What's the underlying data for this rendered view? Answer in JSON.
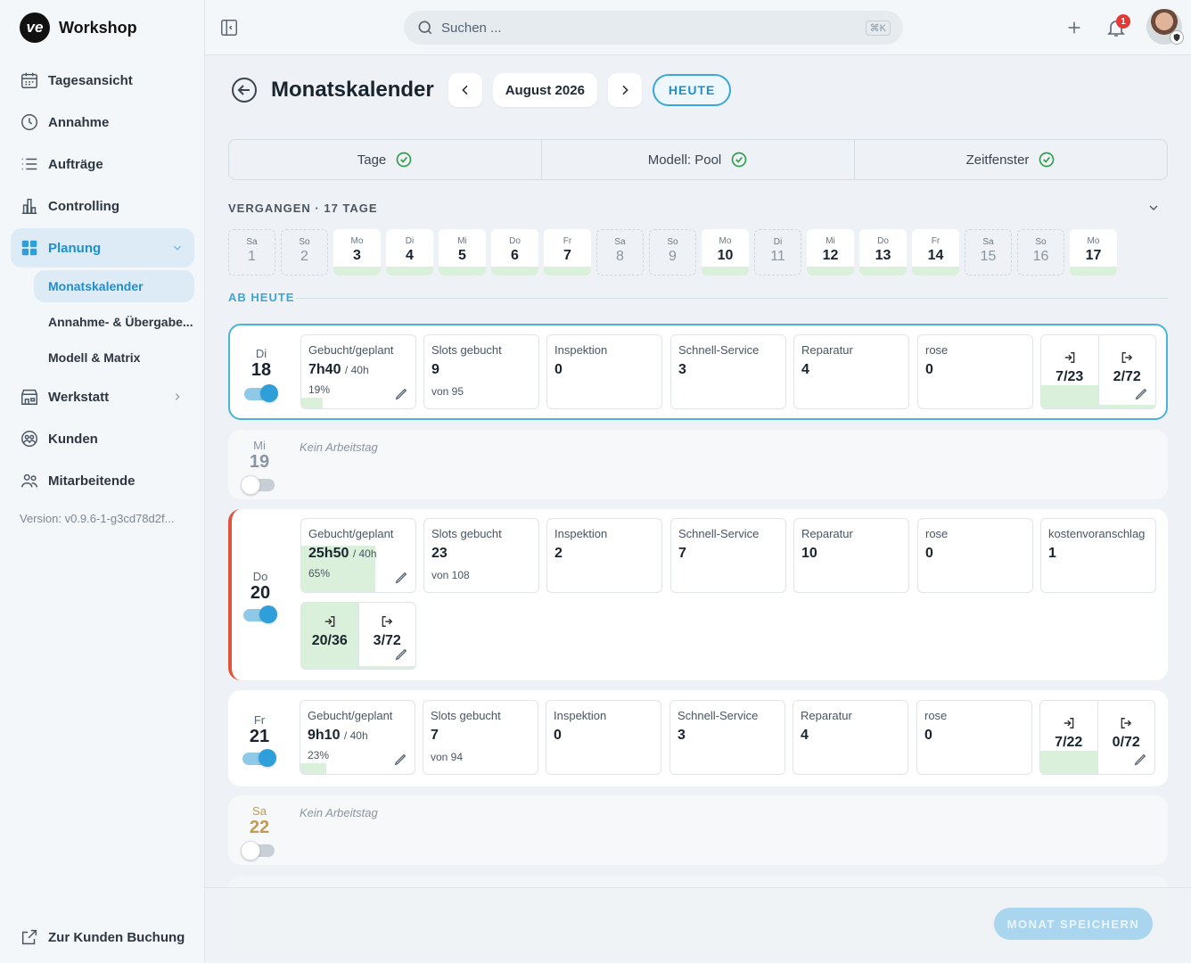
{
  "app": {
    "name": "Workshop",
    "logo_text": "ve",
    "version": "Version: v0.9.6-1-g3cd78d2f..."
  },
  "sidebar": {
    "items": [
      {
        "label": "Tagesansicht",
        "icon": "calendar-icon"
      },
      {
        "label": "Annahme",
        "icon": "clock-icon"
      },
      {
        "label": "Aufträge",
        "icon": "list-icon"
      },
      {
        "label": "Controlling",
        "icon": "chart-icon"
      },
      {
        "label": "Planung",
        "icon": "grid-icon",
        "active": true
      },
      {
        "label": "Werkstatt",
        "icon": "store-icon"
      },
      {
        "label": "Kunden",
        "icon": "users-icon"
      },
      {
        "label": "Mitarbeitende",
        "icon": "team-icon"
      }
    ],
    "subitems": [
      "Monatskalender",
      "Annahme- & Übergabe...",
      "Modell & Matrix"
    ],
    "bottom_link": "Zur Kunden Buchung"
  },
  "topbar": {
    "search_placeholder": "Suchen ...",
    "shortcut": "⌘K",
    "notification_count": "1"
  },
  "header": {
    "title": "Monatskalender",
    "month": "August 2026",
    "today_label": "HEUTE"
  },
  "tabs": [
    "Tage",
    "Modell: Pool",
    "Zeitfenster"
  ],
  "past_label": "VERGANGEN · 17 TAGE",
  "future_label": "AB HEUTE",
  "past_days": [
    {
      "wd": "Sa",
      "d": "1",
      "work": false
    },
    {
      "wd": "So",
      "d": "2",
      "work": false
    },
    {
      "wd": "Mo",
      "d": "3",
      "work": true
    },
    {
      "wd": "Di",
      "d": "4",
      "work": true
    },
    {
      "wd": "Mi",
      "d": "5",
      "work": true
    },
    {
      "wd": "Do",
      "d": "6",
      "work": true
    },
    {
      "wd": "Fr",
      "d": "7",
      "work": true
    },
    {
      "wd": "Sa",
      "d": "8",
      "work": false
    },
    {
      "wd": "So",
      "d": "9",
      "work": false
    },
    {
      "wd": "Mo",
      "d": "10",
      "work": true
    },
    {
      "wd": "Di",
      "d": "11",
      "work": false
    },
    {
      "wd": "Mi",
      "d": "12",
      "work": true
    },
    {
      "wd": "Do",
      "d": "13",
      "work": true
    },
    {
      "wd": "Fr",
      "d": "14",
      "work": true
    },
    {
      "wd": "Sa",
      "d": "15",
      "work": false
    },
    {
      "wd": "So",
      "d": "16",
      "work": false
    },
    {
      "wd": "Mo",
      "d": "17",
      "work": true
    }
  ],
  "labels": {
    "booked": "Gebucht/geplant",
    "slots": "Slots gebucht",
    "inspektion": "Inspektion",
    "schnell": "Schnell-Service",
    "reparatur": "Reparatur",
    "rose": "rose",
    "kva": "kostenvoranschlag",
    "no_work": "Kein Arbeitstag",
    "per40": "/ 40h"
  },
  "days": {
    "d18": {
      "wd": "Di",
      "d": "18",
      "booked": "7h40",
      "pct": "19%",
      "pct_value": 0.19,
      "slots": "9",
      "slots_of": "von 95",
      "inspektion": "0",
      "schnell": "3",
      "reparatur": "4",
      "rose": "0",
      "in": "7/23",
      "out": "2/72"
    },
    "d19": {
      "wd": "Mi",
      "d": "19"
    },
    "d20": {
      "wd": "Do",
      "d": "20",
      "booked": "25h50",
      "pct": "65%",
      "pct_value": 0.65,
      "slots": "23",
      "slots_of": "von 108",
      "inspektion": "2",
      "schnell": "7",
      "reparatur": "10",
      "rose": "0",
      "kva": "1",
      "in": "20/36",
      "out": "3/72"
    },
    "d21": {
      "wd": "Fr",
      "d": "21",
      "booked": "9h10",
      "pct": "23%",
      "pct_value": 0.23,
      "slots": "7",
      "slots_of": "von 94",
      "inspektion": "0",
      "schnell": "3",
      "reparatur": "4",
      "rose": "0",
      "in": "7/22",
      "out": "0/72"
    },
    "d22": {
      "wd": "Sa",
      "d": "22"
    }
  },
  "footer": {
    "save_label": "MONAT SPEICHERN"
  },
  "colors": {
    "accent": "#1f8fd0",
    "fill_green": "#dbf0da",
    "red_marker": "#e0533d"
  }
}
